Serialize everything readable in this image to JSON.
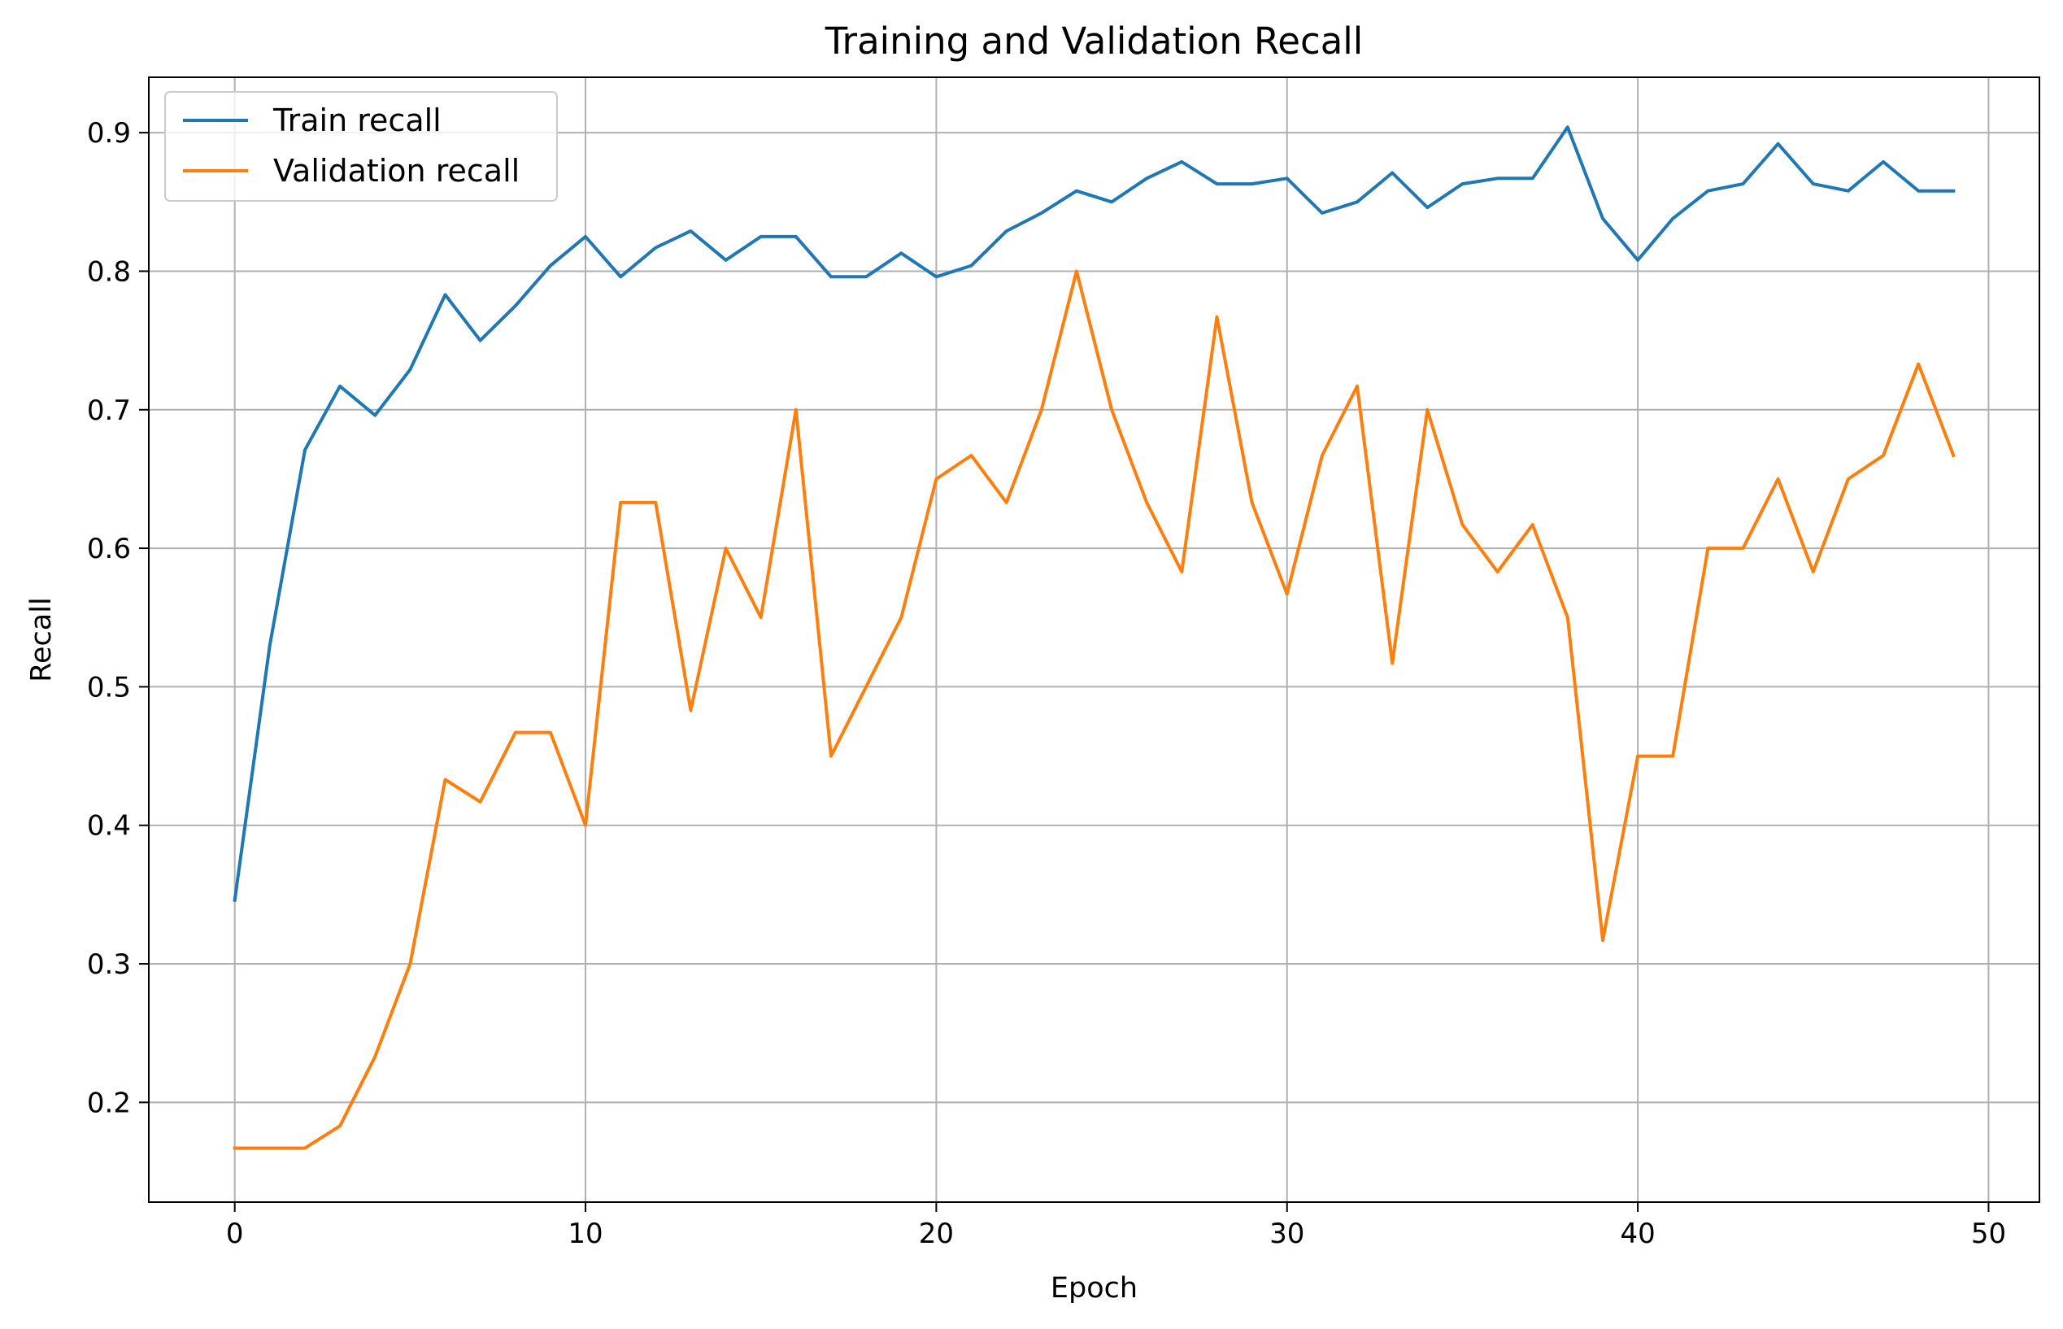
{
  "chart_data": {
    "type": "line",
    "title": "Training and Validation Recall",
    "xlabel": "Epoch",
    "ylabel": "Recall",
    "xlim": [
      -2.45,
      51.45
    ],
    "ylim": [
      0.128,
      0.94
    ],
    "xticks": [
      0,
      10,
      20,
      30,
      40,
      50
    ],
    "yticks": [
      0.2,
      0.3,
      0.4,
      0.5,
      0.6,
      0.7,
      0.8,
      0.9
    ],
    "grid": true,
    "legend_position": "top-left",
    "x": [
      0,
      1,
      2,
      3,
      4,
      5,
      6,
      7,
      8,
      9,
      10,
      11,
      12,
      13,
      14,
      15,
      16,
      17,
      18,
      19,
      20,
      21,
      22,
      23,
      24,
      25,
      26,
      27,
      28,
      29,
      30,
      31,
      32,
      33,
      34,
      35,
      36,
      37,
      38,
      39,
      40,
      41,
      42,
      43,
      44,
      45,
      46,
      47,
      48,
      49
    ],
    "series": [
      {
        "name": "Train recall",
        "color": "#1f77b4",
        "values": [
          0.346,
          0.53,
          0.671,
          0.717,
          0.696,
          0.729,
          0.783,
          0.75,
          0.775,
          0.804,
          0.825,
          0.796,
          0.817,
          0.829,
          0.808,
          0.825,
          0.825,
          0.796,
          0.796,
          0.813,
          0.796,
          0.804,
          0.829,
          0.842,
          0.858,
          0.85,
          0.867,
          0.879,
          0.863,
          0.863,
          0.867,
          0.842,
          0.85,
          0.871,
          0.846,
          0.863,
          0.867,
          0.867,
          0.904,
          0.838,
          0.808,
          0.838,
          0.858,
          0.863,
          0.892,
          0.863,
          0.858,
          0.879,
          0.858,
          0.858
        ]
      },
      {
        "name": "Validation recall",
        "color": "#ff7f0e",
        "values": [
          0.167,
          0.167,
          0.167,
          0.183,
          0.233,
          0.3,
          0.433,
          0.417,
          0.467,
          0.467,
          0.4,
          0.633,
          0.633,
          0.483,
          0.6,
          0.55,
          0.7,
          0.45,
          0.5,
          0.55,
          0.65,
          0.667,
          0.633,
          0.7,
          0.8,
          0.7,
          0.633,
          0.583,
          0.767,
          0.633,
          0.567,
          0.667,
          0.717,
          0.517,
          0.7,
          0.617,
          0.583,
          0.617,
          0.55,
          0.317,
          0.45,
          0.45,
          0.6,
          0.6,
          0.65,
          0.583,
          0.65,
          0.667,
          0.733,
          0.667
        ]
      }
    ]
  }
}
